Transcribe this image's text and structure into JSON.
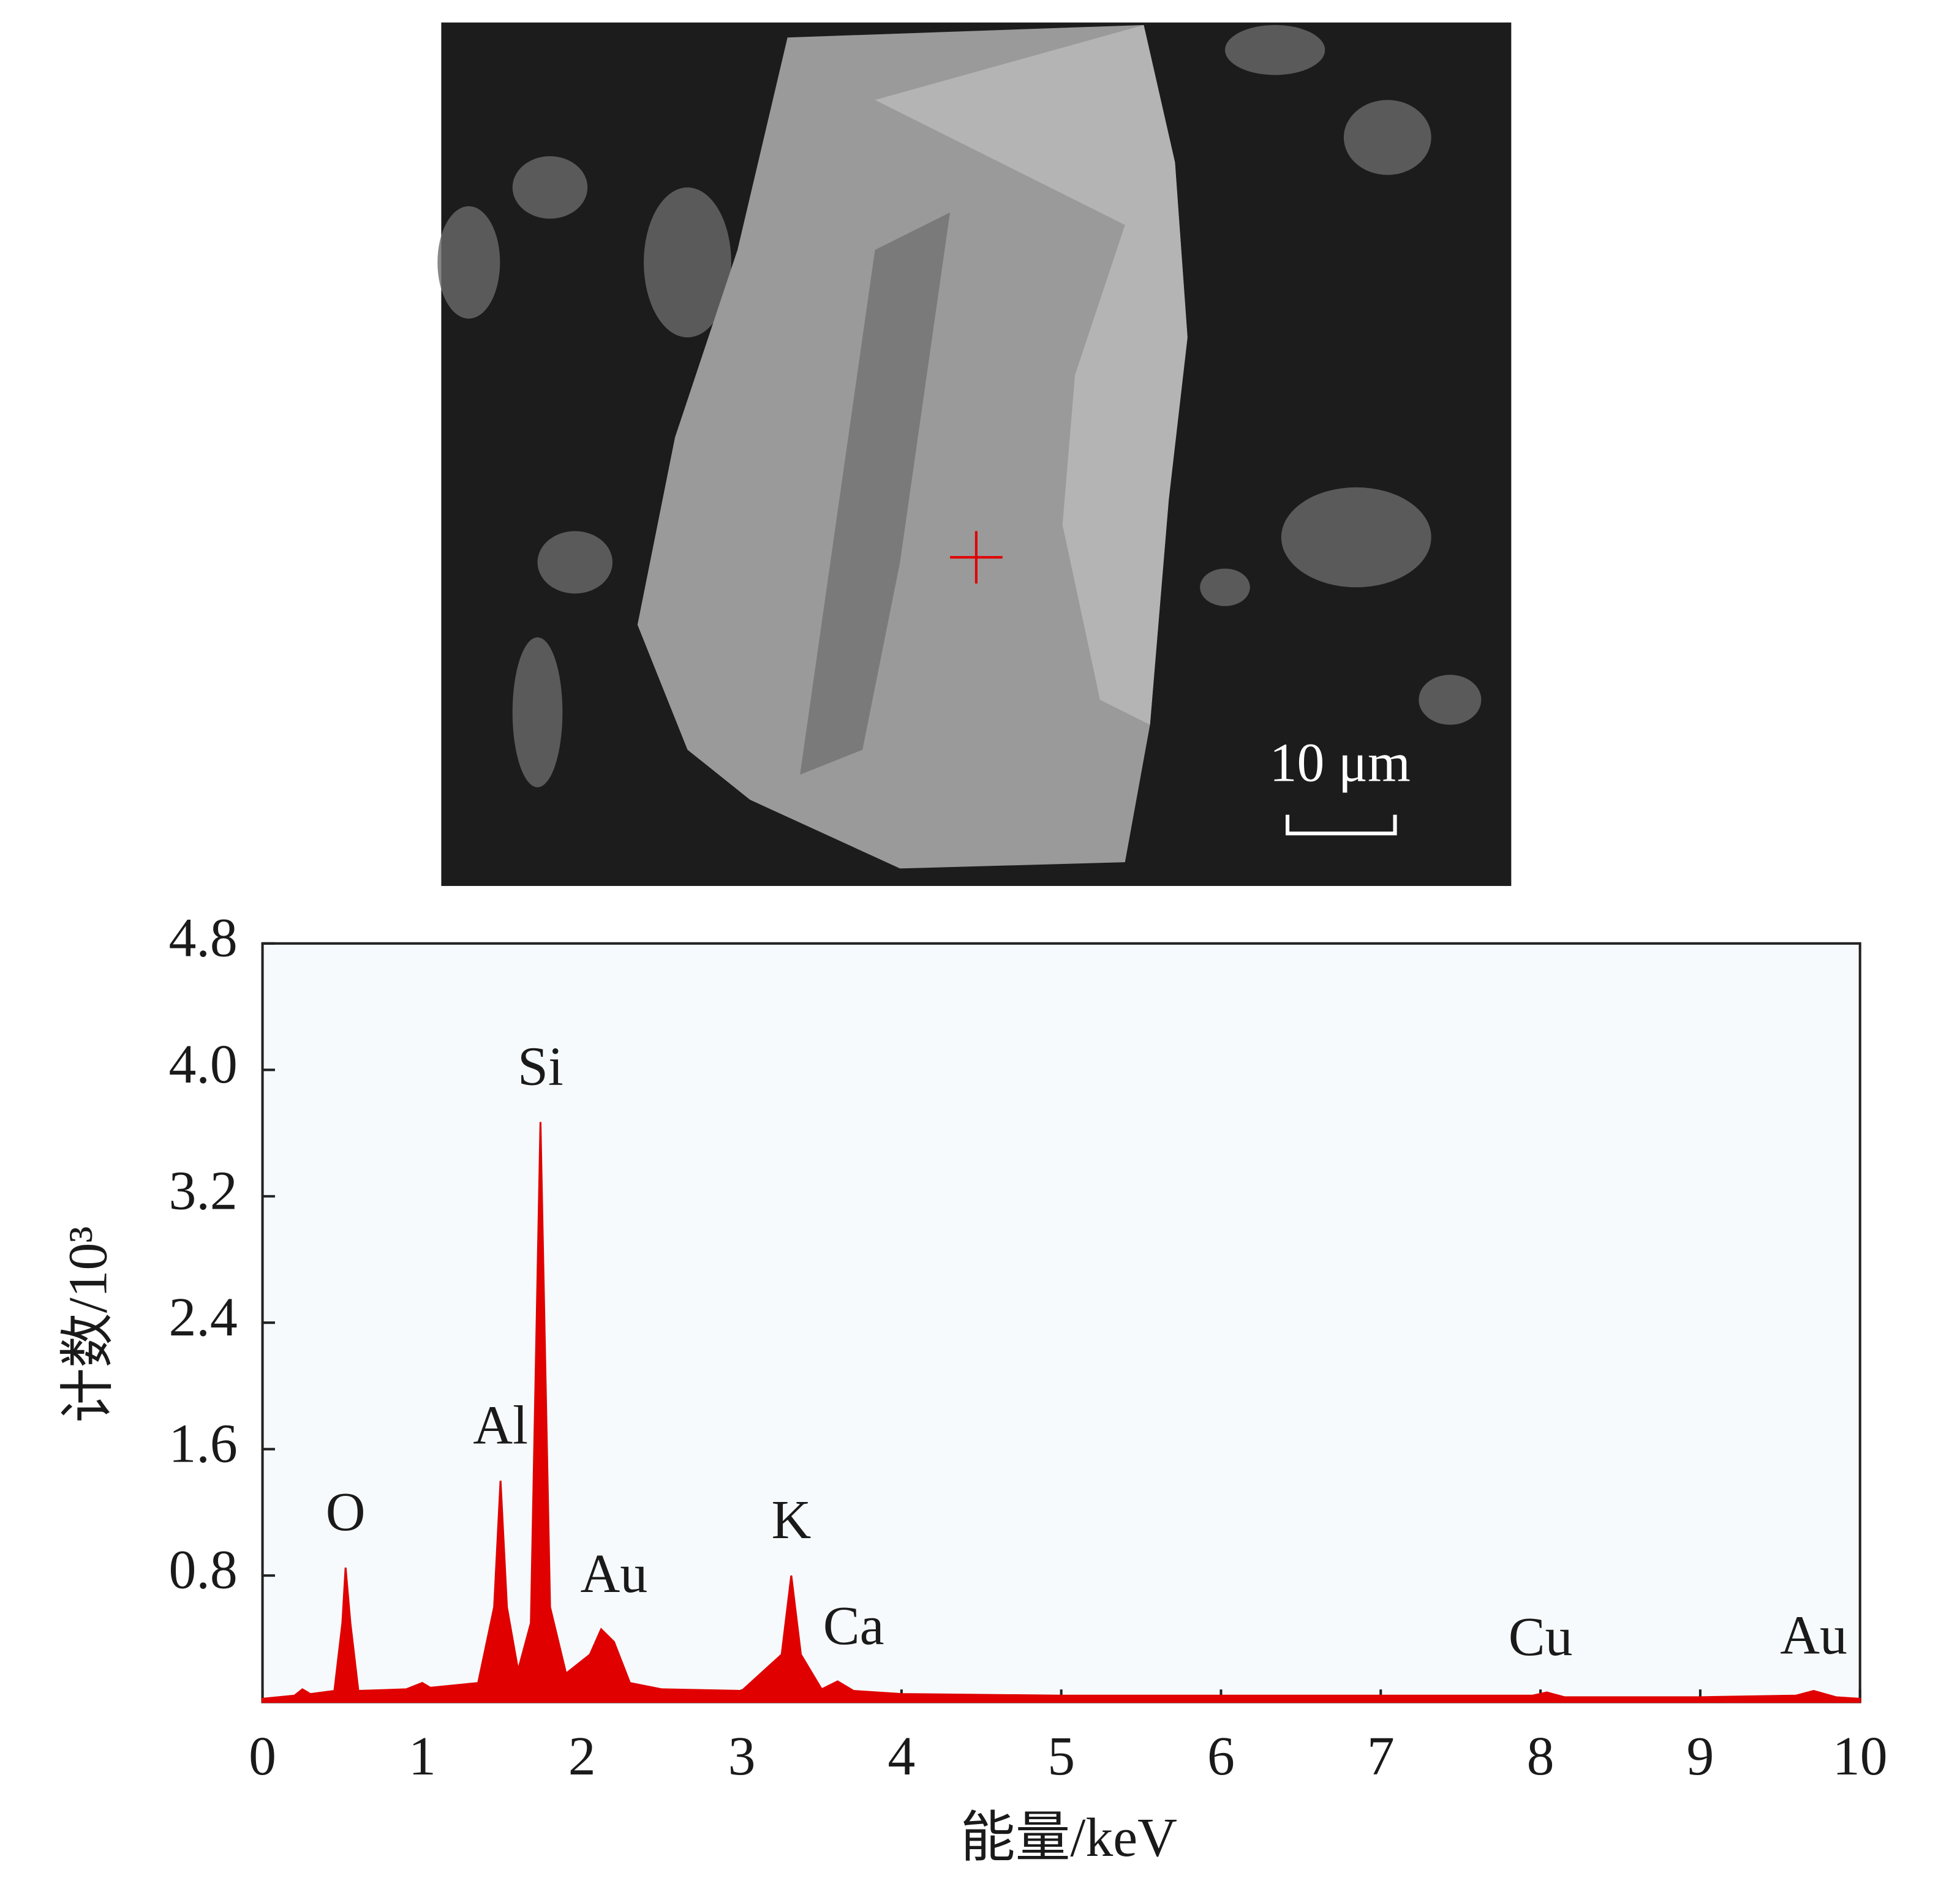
{
  "image": {
    "scale_bar_label": "10 μm"
  },
  "chart_data": {
    "type": "area",
    "xlabel": "能量/keV",
    "ylabel": "计数/10³",
    "xlim": [
      0,
      10
    ],
    "ylim": [
      0,
      4.8
    ],
    "xticks": [
      0,
      1,
      2,
      3,
      4,
      5,
      6,
      7,
      8,
      9,
      10
    ],
    "yticks": [
      0.8,
      1.6,
      2.4,
      3.2,
      {
        "value": 4,
        "label": "4.0"
      },
      4.8
    ],
    "grid": false,
    "series": [
      {
        "color": "#e00000",
        "x": [
          0,
          0.2,
          0.25,
          0.3,
          0.45,
          0.5,
          0.52,
          0.55,
          0.6,
          0.9,
          1.0,
          1.05,
          1.35,
          1.45,
          1.49,
          1.53,
          1.6,
          1.68,
          1.74,
          1.8,
          1.9,
          2.05,
          2.12,
          2.2,
          2.3,
          2.5,
          3.0,
          3.25,
          3.31,
          3.37,
          3.5,
          3.6,
          3.7,
          4.0,
          5.0,
          6.0,
          7.0,
          7.95,
          8.04,
          8.15,
          9.0,
          9.6,
          9.71,
          9.85,
          10
        ],
        "values": [
          0.02,
          0.04,
          0.08,
          0.05,
          0.07,
          0.5,
          0.85,
          0.5,
          0.07,
          0.08,
          0.12,
          0.09,
          0.12,
          0.6,
          1.4,
          0.6,
          0.2,
          0.5,
          3.67,
          0.6,
          0.18,
          0.3,
          0.46,
          0.38,
          0.12,
          0.08,
          0.07,
          0.3,
          0.8,
          0.3,
          0.08,
          0.13,
          0.07,
          0.05,
          0.04,
          0.04,
          0.04,
          0.04,
          0.06,
          0.03,
          0.03,
          0.04,
          0.07,
          0.03,
          0.02
        ]
      }
    ],
    "peak_labels": [
      {
        "text": "O",
        "x": 0.52
      },
      {
        "text": "Al",
        "x": 1.49
      },
      {
        "text": "Si",
        "x": 1.74
      },
      {
        "text": "Au",
        "x": 2.2
      },
      {
        "text": "K",
        "x": 3.31
      },
      {
        "text": "Ca",
        "x": 3.7
      },
      {
        "text": "Cu",
        "x": 8.0
      },
      {
        "text": "Au",
        "x": 9.71
      }
    ]
  }
}
